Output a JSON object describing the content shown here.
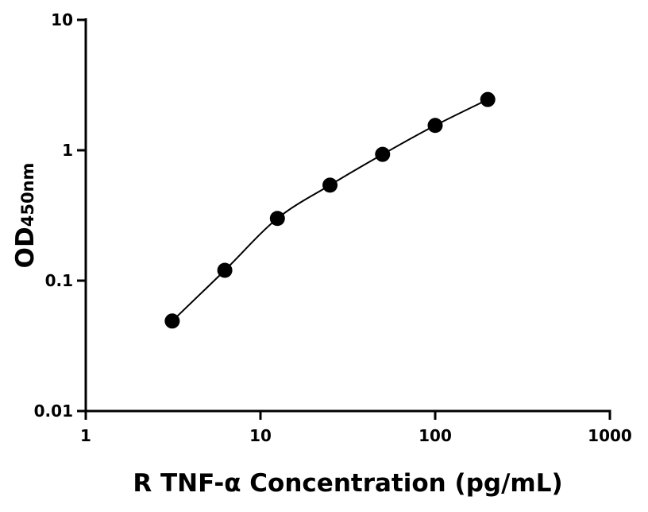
{
  "chart_data": {
    "type": "scatter",
    "title": "",
    "xlabel": "R TNF-α Concentration (pg/mL)",
    "ylabel_main": "OD",
    "ylabel_sub": "450nm",
    "x_scale": "log",
    "y_scale": "log",
    "xlim": [
      1,
      1000
    ],
    "ylim": [
      0.01,
      10
    ],
    "x_ticks": [
      1,
      10,
      100,
      1000
    ],
    "x_tick_labels": [
      "1",
      "10",
      "100",
      "1000"
    ],
    "y_ticks": [
      0.01,
      0.1,
      1,
      10
    ],
    "y_tick_labels": [
      "0.01",
      "0.1",
      "1",
      "10"
    ],
    "grid": false,
    "fit_curve": true,
    "marker_color": "#000000",
    "series": [
      {
        "x": [
          3.125,
          6.25,
          12.5,
          25,
          50,
          100,
          200
        ],
        "y": [
          0.049,
          0.12,
          0.3,
          0.54,
          0.93,
          1.55,
          2.45
        ]
      }
    ]
  }
}
